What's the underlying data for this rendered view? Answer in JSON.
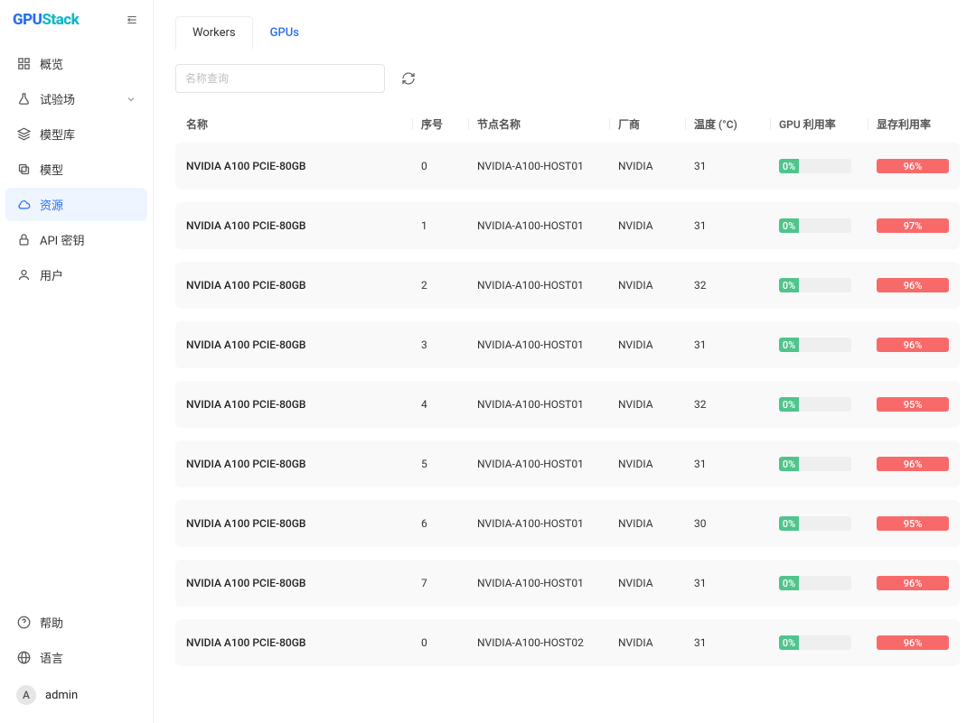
{
  "brand": {
    "part1": "GPU",
    "part2": "Stack"
  },
  "sidebar": {
    "items": [
      {
        "key": "overview",
        "label": "概览",
        "icon": "grid",
        "active": false,
        "hasChildren": false
      },
      {
        "key": "playground",
        "label": "试验场",
        "icon": "flask",
        "active": false,
        "hasChildren": true
      },
      {
        "key": "modelhub",
        "label": "模型库",
        "icon": "layers",
        "active": false,
        "hasChildren": false
      },
      {
        "key": "models",
        "label": "模型",
        "icon": "copy",
        "active": false,
        "hasChildren": false
      },
      {
        "key": "resources",
        "label": "资源",
        "icon": "cloud",
        "active": true,
        "hasChildren": false
      },
      {
        "key": "apikeys",
        "label": "API 密钥",
        "icon": "lock",
        "active": false,
        "hasChildren": false
      },
      {
        "key": "users",
        "label": "用户",
        "icon": "user",
        "active": false,
        "hasChildren": false
      }
    ],
    "bottom": [
      {
        "key": "help",
        "label": "帮助",
        "icon": "question"
      },
      {
        "key": "lang",
        "label": "语言",
        "icon": "globe"
      }
    ],
    "user": {
      "initial": "A",
      "name": "admin"
    }
  },
  "tabs": [
    {
      "key": "workers",
      "label": "Workers",
      "active": false
    },
    {
      "key": "gpus",
      "label": "GPUs",
      "active": true
    }
  ],
  "search": {
    "placeholder": "名称查询",
    "value": ""
  },
  "columns": [
    {
      "key": "name",
      "label": "名称"
    },
    {
      "key": "index",
      "label": "序号"
    },
    {
      "key": "node",
      "label": "节点名称"
    },
    {
      "key": "vendor",
      "label": "厂商"
    },
    {
      "key": "temp",
      "label": "温度 (°C)"
    },
    {
      "key": "gpuutil",
      "label": "GPU 利用率"
    },
    {
      "key": "memutil",
      "label": "显存利用率"
    }
  ],
  "rows": [
    {
      "name": "NVIDIA A100 PCIE-80GB",
      "index": 0,
      "node": "NVIDIA-A100-HOST01",
      "vendor": "NVIDIA",
      "temp": 31,
      "gpu_util": 0,
      "mem_util": 96
    },
    {
      "name": "NVIDIA A100 PCIE-80GB",
      "index": 1,
      "node": "NVIDIA-A100-HOST01",
      "vendor": "NVIDIA",
      "temp": 31,
      "gpu_util": 0,
      "mem_util": 97
    },
    {
      "name": "NVIDIA A100 PCIE-80GB",
      "index": 2,
      "node": "NVIDIA-A100-HOST01",
      "vendor": "NVIDIA",
      "temp": 32,
      "gpu_util": 0,
      "mem_util": 96
    },
    {
      "name": "NVIDIA A100 PCIE-80GB",
      "index": 3,
      "node": "NVIDIA-A100-HOST01",
      "vendor": "NVIDIA",
      "temp": 31,
      "gpu_util": 0,
      "mem_util": 96
    },
    {
      "name": "NVIDIA A100 PCIE-80GB",
      "index": 4,
      "node": "NVIDIA-A100-HOST01",
      "vendor": "NVIDIA",
      "temp": 32,
      "gpu_util": 0,
      "mem_util": 95
    },
    {
      "name": "NVIDIA A100 PCIE-80GB",
      "index": 5,
      "node": "NVIDIA-A100-HOST01",
      "vendor": "NVIDIA",
      "temp": 31,
      "gpu_util": 0,
      "mem_util": 96
    },
    {
      "name": "NVIDIA A100 PCIE-80GB",
      "index": 6,
      "node": "NVIDIA-A100-HOST01",
      "vendor": "NVIDIA",
      "temp": 30,
      "gpu_util": 0,
      "mem_util": 95
    },
    {
      "name": "NVIDIA A100 PCIE-80GB",
      "index": 7,
      "node": "NVIDIA-A100-HOST01",
      "vendor": "NVIDIA",
      "temp": 31,
      "gpu_util": 0,
      "mem_util": 96
    },
    {
      "name": "NVIDIA A100 PCIE-80GB",
      "index": 0,
      "node": "NVIDIA-A100-HOST02",
      "vendor": "NVIDIA",
      "temp": 31,
      "gpu_util": 0,
      "mem_util": 96
    }
  ],
  "colors": {
    "accent": "#2a6df4",
    "good": "#4fc48b",
    "bad": "#f86a6a",
    "row_bg": "#f9f9fa",
    "bar_bg": "#efefef"
  }
}
